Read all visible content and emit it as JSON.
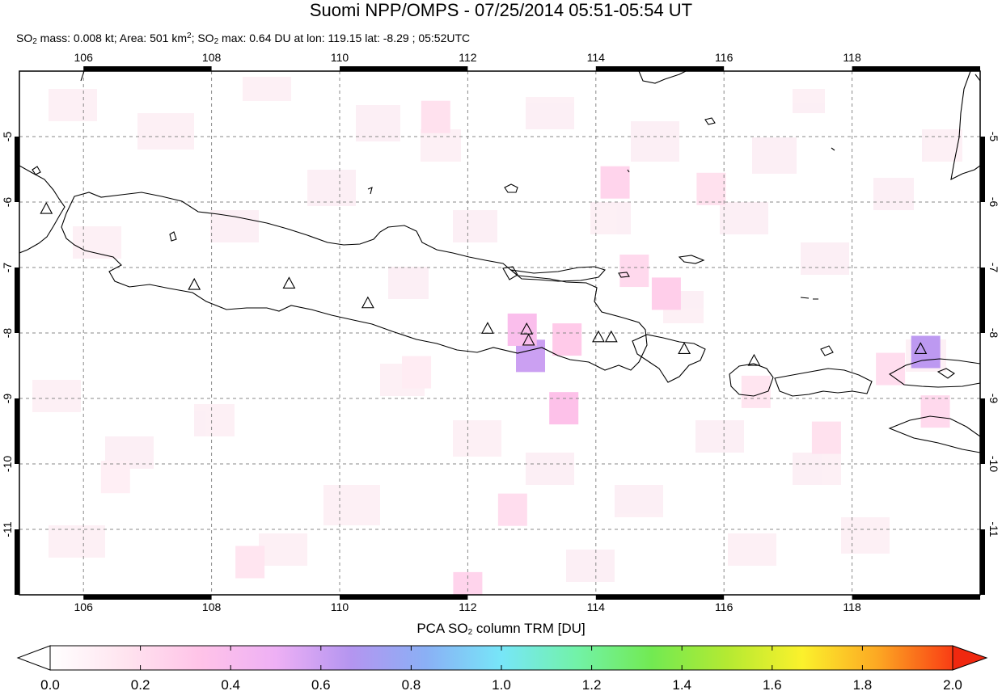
{
  "header": {
    "title": "Suomi NPP/OMPS - 07/25/2014 05:51-05:54 UT",
    "stats_a": "SO",
    "stats_a_sub": "2",
    "stats_b": " mass: 0.008 kt; Area: 501 km",
    "stats_b_sup": "2",
    "stats_c": "; SO",
    "stats_c_sub": "2",
    "stats_d": " max: 0.64 DU at lon: 119.15 lat: -8.29 ; 05:52UTC"
  },
  "map": {
    "lon_range": [
      105.0,
      120.0
    ],
    "lat_range": [
      -12.0,
      -4.0
    ],
    "lon_ticks": [
      "106",
      "108",
      "110",
      "112",
      "114",
      "116",
      "118"
    ],
    "lat_ticks": [
      "-5",
      "-6",
      "-7",
      "-8",
      "-9",
      "-10",
      "-11"
    ],
    "lon_tick_values": [
      106,
      108,
      110,
      112,
      114,
      116,
      118
    ],
    "lat_tick_values": [
      -5,
      -6,
      -7,
      -8,
      -9,
      -10,
      -11
    ],
    "grid": true,
    "volcanoes": [
      {
        "lon": 105.42,
        "lat": -6.1
      },
      {
        "lon": 107.73,
        "lat": -7.26
      },
      {
        "lon": 109.21,
        "lat": -7.24
      },
      {
        "lon": 110.44,
        "lat": -7.54
      },
      {
        "lon": 112.31,
        "lat": -7.93
      },
      {
        "lon": 112.92,
        "lat": -7.94
      },
      {
        "lon": 112.95,
        "lat": -8.11
      },
      {
        "lon": 114.04,
        "lat": -8.06
      },
      {
        "lon": 114.24,
        "lat": -8.06
      },
      {
        "lon": 115.38,
        "lat": -8.24
      },
      {
        "lon": 116.47,
        "lat": -8.42
      },
      {
        "lon": 119.07,
        "lat": -8.24
      }
    ],
    "so2_pixels": [
      {
        "lon": 112.98,
        "lat": -8.35,
        "du": 0.6
      },
      {
        "lon": 119.15,
        "lat": -8.29,
        "du": 0.64
      },
      {
        "lon": 112.85,
        "lat": -7.95,
        "du": 0.38
      },
      {
        "lon": 113.55,
        "lat": -8.1,
        "du": 0.3
      },
      {
        "lon": 113.5,
        "lat": -9.15,
        "du": 0.35
      },
      {
        "lon": 114.3,
        "lat": -5.7,
        "du": 0.25
      },
      {
        "lon": 115.1,
        "lat": -7.4,
        "du": 0.28
      },
      {
        "lon": 114.6,
        "lat": -7.05,
        "du": 0.22
      },
      {
        "lon": 119.3,
        "lat": -9.2,
        "du": 0.22
      },
      {
        "lon": 117.6,
        "lat": -9.6,
        "du": 0.18
      },
      {
        "lon": 112.7,
        "lat": -10.7,
        "du": 0.2
      },
      {
        "lon": 111.5,
        "lat": -4.7,
        "du": 0.18
      },
      {
        "lon": 108.6,
        "lat": -11.5,
        "du": 0.16
      },
      {
        "lon": 116.5,
        "lat": -8.9,
        "du": 0.16
      },
      {
        "lon": 118.6,
        "lat": -8.55,
        "du": 0.2
      },
      {
        "lon": 115.8,
        "lat": -5.8,
        "du": 0.18
      },
      {
        "lon": 111.2,
        "lat": -8.6,
        "du": 0.12
      },
      {
        "lon": 106.5,
        "lat": -10.2,
        "du": 0.1
      },
      {
        "lon": 112.0,
        "lat": -11.9,
        "du": 0.25
      }
    ]
  },
  "colorbar": {
    "title_a": "PCA SO",
    "title_sub": "2",
    "title_b": " column TRM [DU]",
    "ticks": [
      "0.0",
      "0.2",
      "0.4",
      "0.6",
      "0.8",
      "1.0",
      "1.2",
      "1.4",
      "1.6",
      "1.8",
      "2.0"
    ],
    "colors": [
      "#ffffff",
      "#ffe4ef",
      "#ffc3e8",
      "#eeb0f5",
      "#b495f0",
      "#8ab0f5",
      "#77e6f8",
      "#72f2a8",
      "#72ea52",
      "#b4ea32",
      "#fbf12c",
      "#fca823",
      "#f93d14"
    ],
    "under_color": "#ffffff",
    "over_color": "#f0280f"
  }
}
